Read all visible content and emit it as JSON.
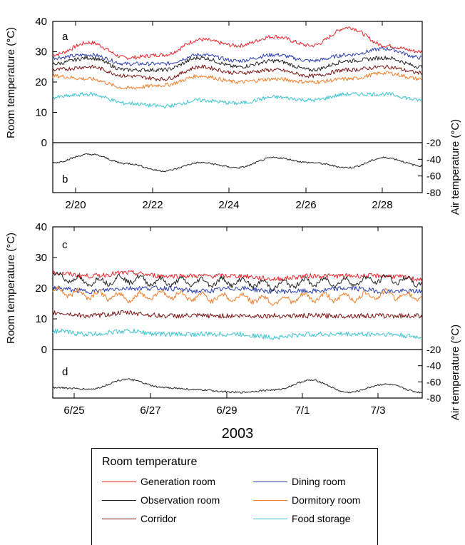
{
  "figure": {
    "year_label": "2003",
    "ylabel_room": "Room temperature (°C)",
    "ylabel_air": "Air temperature (°C)"
  },
  "colors": {
    "generation": "#e8242b",
    "dining": "#2b3fae",
    "observation": "#222222",
    "dormitory": "#f07d2a",
    "corridor": "#7a1212",
    "food": "#3cc3cf",
    "air": "#222222"
  },
  "legend": {
    "title": "Room temperature",
    "items": [
      {
        "label": "Generation room",
        "color": "#e8242b"
      },
      {
        "label": "Dining room",
        "color": "#2b3fae"
      },
      {
        "label": "Observation room",
        "color": "#222222"
      },
      {
        "label": "Dormitory room",
        "color": "#f07d2a"
      },
      {
        "label": "Corridor",
        "color": "#7a1212"
      },
      {
        "label": "Food storage",
        "color": "#3cc3cf"
      }
    ]
  },
  "chart_data": [
    {
      "panel": "a",
      "type": "line",
      "xlabel": "",
      "ylabel": "Room temperature (°C)",
      "ylim": [
        0,
        40
      ],
      "yticks": [
        0,
        10,
        20,
        30,
        40
      ],
      "xticks": [
        "2/20",
        "2/22",
        "2/24",
        "2/26",
        "2/28"
      ],
      "x": [
        "2/19",
        "2/20",
        "2/21",
        "2/22",
        "2/23",
        "2/24",
        "2/25",
        "2/26",
        "2/27",
        "2/28",
        "2/29"
      ],
      "series": [
        {
          "name": "Generation room",
          "color": "#e8242b",
          "values": [
            29,
            33,
            28,
            29,
            34,
            32,
            35,
            32,
            38,
            32,
            30
          ]
        },
        {
          "name": "Dining room",
          "color": "#2b3fae",
          "values": [
            28,
            29,
            26,
            26,
            29,
            27,
            29,
            27,
            29,
            31,
            28
          ]
        },
        {
          "name": "Observation room",
          "color": "#222222",
          "values": [
            26,
            28,
            24,
            24,
            28,
            25,
            27,
            24,
            27,
            28,
            25
          ]
        },
        {
          "name": "Dormitory room",
          "color": "#f07d2a",
          "values": [
            22,
            21,
            18,
            19,
            22,
            20,
            21,
            20,
            21,
            23,
            21
          ]
        },
        {
          "name": "Corridor",
          "color": "#7a1212",
          "values": [
            24,
            25,
            22,
            21,
            25,
            23,
            24,
            22,
            24,
            25,
            23
          ]
        },
        {
          "name": "Food storage",
          "color": "#3cc3cf",
          "values": [
            15,
            16,
            13,
            12,
            14,
            13,
            15,
            14,
            16,
            16,
            14
          ]
        }
      ]
    },
    {
      "panel": "b",
      "type": "line",
      "ylabel": "Air temperature (°C)",
      "ylim": [
        -80,
        -20
      ],
      "yticks": [
        -20,
        -40,
        -60,
        -80
      ],
      "x": [
        "2/19",
        "2/20",
        "2/21",
        "2/22",
        "2/23",
        "2/24",
        "2/25",
        "2/26",
        "2/27",
        "2/28",
        "2/29"
      ],
      "series": [
        {
          "name": "",
          "color": "#222222",
          "values": [
            -44,
            -34,
            -45,
            -54,
            -44,
            -50,
            -38,
            -44,
            -50,
            -38,
            -48
          ]
        }
      ]
    },
    {
      "panel": "c",
      "type": "line",
      "ylabel": "Room temperature (°C)",
      "ylim": [
        0,
        40
      ],
      "yticks": [
        0,
        10,
        20,
        30,
        40
      ],
      "xticks": [
        "6/25",
        "6/27",
        "6/29",
        "7/1",
        "7/3"
      ],
      "x": [
        "6/24",
        "6/25",
        "6/26",
        "6/27",
        "6/28",
        "6/29",
        "6/30",
        "7/1",
        "7/2",
        "7/3",
        "7/4"
      ],
      "series": [
        {
          "name": "Generation room",
          "color": "#e8242b",
          "values": [
            25,
            24,
            25,
            24,
            24,
            24,
            23,
            24,
            24,
            24,
            23
          ]
        },
        {
          "name": "Dining room",
          "color": "#2b3fae",
          "values": [
            20,
            19,
            20,
            20,
            19,
            20,
            19,
            19,
            20,
            19,
            19
          ]
        },
        {
          "name": "Observation room",
          "color": "#222222",
          "values": [
            24,
            22,
            23,
            22,
            22,
            22,
            21,
            22,
            22,
            23,
            22
          ]
        },
        {
          "name": "Dormitory room",
          "color": "#f07d2a",
          "values": [
            19,
            18,
            17,
            18,
            17,
            17,
            16,
            17,
            17,
            18,
            17
          ]
        },
        {
          "name": "Corridor",
          "color": "#7a1212",
          "values": [
            12,
            11,
            12,
            11,
            11,
            11,
            11,
            11,
            11,
            11,
            11
          ]
        },
        {
          "name": "Food storage",
          "color": "#3cc3cf",
          "values": [
            6,
            5,
            6,
            5,
            5,
            5,
            4,
            5,
            5,
            5,
            4
          ]
        }
      ]
    },
    {
      "panel": "d",
      "type": "line",
      "ylabel": "Air temperature (°C)",
      "ylim": [
        -80,
        -20
      ],
      "yticks": [
        -20,
        -40,
        -60,
        -80
      ],
      "x": [
        "6/24",
        "6/25",
        "6/26",
        "6/27",
        "6/28",
        "6/29",
        "6/30",
        "7/1",
        "7/2",
        "7/3",
        "7/4"
      ],
      "series": [
        {
          "name": "",
          "color": "#222222",
          "values": [
            -67,
            -69,
            -57,
            -67,
            -70,
            -73,
            -70,
            -58,
            -73,
            -63,
            -73
          ]
        }
      ]
    }
  ]
}
